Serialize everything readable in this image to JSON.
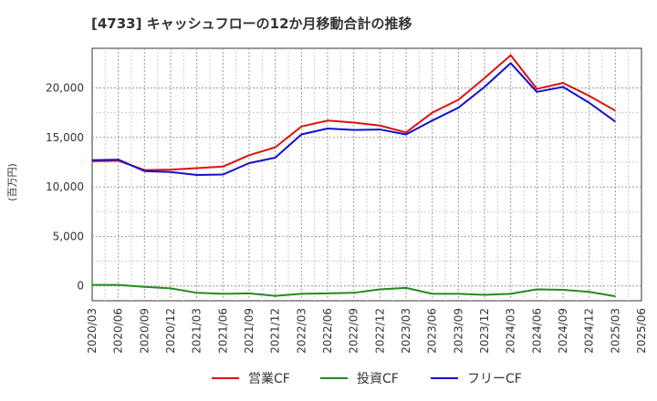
{
  "chart_data": {
    "type": "line",
    "title": "[4733]  キャッシュフローの12か月移動合計の推移",
    "ylabel": "(百万円)",
    "xlabel": "",
    "ylim": [
      -1500,
      24000
    ],
    "yticks": [
      0,
      5000,
      10000,
      15000,
      20000
    ],
    "ytick_labels": [
      "0",
      "5,000",
      "10,000",
      "15,000",
      "20,000"
    ],
    "grid": true,
    "legend_position": "bottom",
    "categories": [
      "2020/03",
      "2020/06",
      "2020/09",
      "2020/12",
      "2021/03",
      "2021/06",
      "2021/09",
      "2021/12",
      "2022/03",
      "2022/06",
      "2022/09",
      "2022/12",
      "2023/03",
      "2023/06",
      "2023/09",
      "2023/12",
      "2024/03",
      "2024/06",
      "2024/09",
      "2024/12",
      "2025/03",
      "2025/06"
    ],
    "series": [
      {
        "name": "営業CF",
        "color": "#dd1111",
        "values": [
          12600,
          12650,
          11700,
          11750,
          11900,
          12050,
          13200,
          14000,
          16100,
          16700,
          16500,
          16200,
          15500,
          17500,
          18800,
          21000,
          23300,
          19900,
          20500,
          19200,
          17700,
          null
        ]
      },
      {
        "name": "投資CF",
        "color": "#228B22",
        "values": [
          100,
          100,
          -100,
          -250,
          -700,
          -800,
          -750,
          -1000,
          -800,
          -750,
          -700,
          -350,
          -200,
          -800,
          -800,
          -900,
          -800,
          -350,
          -400,
          -600,
          -1050,
          null
        ]
      },
      {
        "name": "フリーCF",
        "color": "#1111cc",
        "values": [
          12700,
          12750,
          11600,
          11500,
          11200,
          11250,
          12400,
          12950,
          15300,
          15900,
          15750,
          15800,
          15300,
          16700,
          18000,
          20100,
          22500,
          19600,
          20100,
          18500,
          16600,
          null
        ]
      }
    ]
  }
}
